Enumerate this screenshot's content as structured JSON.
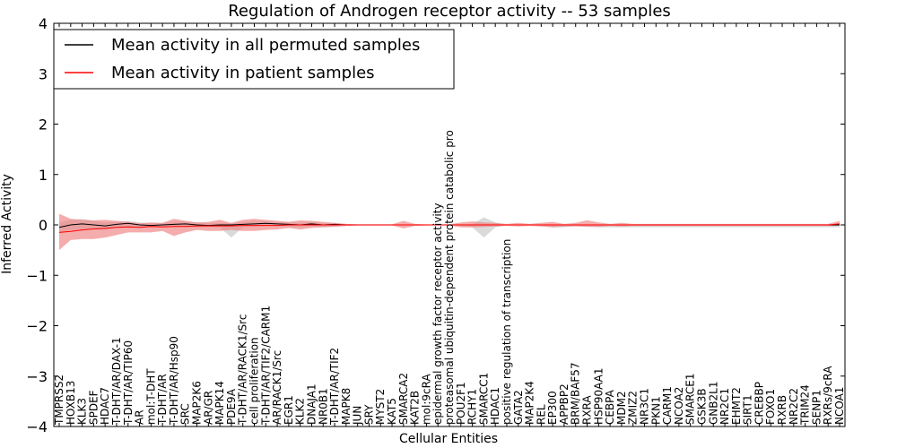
{
  "chart_data": {
    "type": "line",
    "title": "Regulation of Androgen receptor activity -- 53 samples",
    "xlabel": "Cellular Entities",
    "ylabel": "Inferred Activity",
    "ylim": [
      -4,
      4
    ],
    "yticks": [
      "−4",
      "−3",
      "−2",
      "−1",
      "0",
      "1",
      "2",
      "3",
      "4"
    ],
    "yticks_values": [
      -4,
      -3,
      -2,
      -1,
      0,
      1,
      2,
      3,
      4
    ],
    "grid": false,
    "legend_position": "top-left",
    "categories": [
      "TMPRSS2",
      "HOXB13",
      "KLK3",
      "SPDEF",
      "HDAC7",
      "T-DHT/AR/DAX-1",
      "T-DHT/AR/TIP60",
      "AR",
      "mol:T-DHT",
      "T-DHT/AR",
      "T-DHT/AR/Hsp90",
      "SRC",
      "MAP2K6",
      "AR/GR",
      "MAPK14",
      "PDE9A",
      "T-DHT/AR/RACK1/Src",
      "cell proliferation",
      "T-DHT/AR/TIF2/CARM1",
      "AR/RACK1/Src",
      "EGR1",
      "KLK2",
      "DNAJA1",
      "NR0B1",
      "T-DHT/AR/TIF2",
      "MAPK8",
      "JUN",
      "SRY",
      "MYST2",
      "KAT5",
      "SMARCA2",
      "KAT2B",
      "mol:9cRA",
      "epidermal growth factor receptor activity",
      "proteasomal ubiquitin-dependent protein catabolic pro",
      "POU2F1",
      "RCHY1",
      "SMARCC1",
      "HDAC1",
      "positive regulation of transcription",
      "GATA2",
      "MAP2K4",
      "REL",
      "EP300",
      "APPBP2",
      "BRM/BAF57",
      "RXRA",
      "HSP90AA1",
      "CEBPA",
      "MDM2",
      "ZMIZ2",
      "NR3C1",
      "PKN1",
      "CARM1",
      "NCOA2",
      "SMARCE1",
      "GSK3B",
      "GNB2L1",
      "NR2C1",
      "EHMT2",
      "SIRT1",
      "CREBBP",
      "FOXO1",
      "RXRB",
      "NR2C2",
      "TRIM24",
      "SENP1",
      "RXRs/9cRA",
      "NCOA1"
    ],
    "series": [
      {
        "name": "Mean activity in all permuted samples",
        "color": "#000000",
        "values": [
          -0.05,
          0.0,
          0.02,
          0.0,
          -0.02,
          0.01,
          0.03,
          0.0,
          -0.01,
          0.0,
          0.01,
          0.02,
          0.0,
          -0.01,
          0.0,
          0.0,
          0.01,
          0.02,
          0.03,
          0.02,
          0.01,
          0.0,
          0.02,
          0.0,
          0.01,
          0.0,
          0.0,
          0.0,
          0.0,
          0.0,
          0.0,
          0.0,
          0.0,
          0.0,
          0.0,
          0.0,
          0.0,
          0.0,
          0.0,
          0.0,
          0.0,
          0.0,
          0.0,
          0.0,
          0.0,
          0.0,
          0.0,
          0.0,
          0.0,
          0.0,
          0.0,
          0.0,
          0.0,
          0.0,
          0.0,
          0.0,
          0.0,
          0.0,
          0.0,
          0.0,
          0.0,
          0.0,
          0.0,
          0.0,
          0.0,
          0.0,
          0.0,
          0.0,
          0.0
        ],
        "band_upper": [
          0.05,
          0.1,
          0.12,
          0.08,
          0.05,
          0.06,
          0.08,
          0.05,
          0.03,
          0.04,
          0.06,
          0.07,
          0.05,
          0.03,
          0.04,
          0.03,
          0.06,
          0.08,
          0.07,
          0.06,
          0.05,
          0.04,
          0.06,
          0.03,
          0.04,
          0.02,
          0.01,
          0.01,
          0.01,
          0.01,
          0.0,
          0.0,
          0.0,
          0.0,
          0.0,
          0.0,
          0.02,
          0.15,
          0.05,
          0.0,
          0.0,
          0.0,
          0.0,
          0.0,
          0.0,
          0.0,
          0.0,
          0.0,
          0.0,
          0.0,
          0.0,
          0.0,
          0.0,
          0.0,
          0.0,
          0.0,
          0.0,
          0.0,
          0.0,
          0.0,
          0.0,
          0.0,
          0.0,
          0.0,
          0.0,
          0.0,
          0.0,
          0.0,
          0.0
        ],
        "band_lower": [
          -0.15,
          -0.1,
          -0.08,
          -0.08,
          -0.1,
          -0.05,
          -0.03,
          -0.06,
          -0.05,
          -0.05,
          -0.04,
          -0.04,
          -0.06,
          -0.05,
          -0.05,
          -0.25,
          -0.05,
          -0.04,
          -0.02,
          -0.03,
          -0.04,
          -0.05,
          -0.03,
          -0.04,
          -0.03,
          -0.02,
          -0.01,
          -0.01,
          -0.01,
          -0.01,
          0.0,
          0.0,
          0.0,
          0.0,
          0.0,
          -0.02,
          -0.05,
          -0.25,
          -0.05,
          0.0,
          0.0,
          0.0,
          -0.02,
          -0.05,
          -0.05,
          -0.02,
          -0.03,
          -0.05,
          -0.05,
          -0.05,
          -0.05,
          -0.05,
          -0.05,
          -0.05,
          -0.05,
          -0.05,
          -0.05,
          -0.05,
          -0.05,
          -0.05,
          -0.05,
          -0.05,
          -0.05,
          -0.05,
          -0.05,
          -0.05,
          -0.05,
          -0.05,
          -0.05
        ]
      },
      {
        "name": "Mean activity in patient samples",
        "color": "#ff0000",
        "values": [
          -0.15,
          -0.13,
          -0.1,
          -0.08,
          -0.07,
          -0.05,
          -0.04,
          -0.05,
          -0.03,
          -0.04,
          -0.03,
          -0.03,
          -0.02,
          -0.02,
          -0.02,
          -0.02,
          -0.01,
          -0.01,
          -0.01,
          -0.01,
          0.0,
          0.0,
          0.0,
          0.0,
          0.0,
          0.0,
          0.0,
          0.0,
          0.0,
          0.0,
          0.0,
          0.0,
          0.0,
          0.0,
          0.0,
          0.0,
          0.0,
          0.0,
          0.0,
          0.0,
          0.0,
          0.0,
          0.0,
          0.0,
          0.0,
          0.0,
          0.0,
          0.0,
          0.0,
          0.0,
          0.0,
          0.0,
          0.0,
          0.0,
          0.0,
          0.0,
          0.0,
          0.0,
          0.0,
          0.0,
          0.0,
          0.0,
          0.0,
          0.0,
          0.0,
          0.0,
          0.0,
          0.0,
          0.02
        ],
        "band_upper": [
          0.22,
          0.12,
          0.1,
          0.09,
          0.1,
          0.08,
          0.06,
          0.03,
          0.05,
          0.04,
          0.12,
          0.08,
          0.05,
          0.06,
          0.1,
          0.04,
          0.1,
          0.12,
          0.1,
          0.08,
          0.06,
          0.09,
          0.08,
          0.06,
          0.04,
          0.02,
          0.01,
          0.01,
          0.01,
          0.01,
          0.08,
          0.02,
          0.01,
          0.01,
          0.01,
          0.05,
          0.07,
          0.05,
          0.04,
          0.02,
          0.04,
          0.02,
          0.04,
          0.06,
          0.02,
          0.04,
          0.09,
          0.05,
          0.02,
          0.04,
          0.02,
          0.02,
          0.02,
          0.02,
          0.02,
          0.02,
          0.02,
          0.02,
          0.02,
          0.02,
          0.02,
          0.02,
          0.02,
          0.02,
          0.02,
          0.02,
          0.02,
          0.02,
          0.08
        ],
        "band_lower": [
          -0.5,
          -0.3,
          -0.28,
          -0.28,
          -0.25,
          -0.2,
          -0.15,
          -0.15,
          -0.15,
          -0.12,
          -0.22,
          -0.15,
          -0.1,
          -0.12,
          -0.12,
          -0.1,
          -0.12,
          -0.12,
          -0.1,
          -0.09,
          -0.06,
          -0.09,
          -0.06,
          -0.05,
          -0.04,
          -0.02,
          -0.01,
          -0.01,
          -0.01,
          -0.01,
          -0.07,
          -0.02,
          -0.01,
          -0.01,
          -0.01,
          -0.05,
          -0.05,
          -0.04,
          -0.03,
          -0.02,
          -0.03,
          -0.02,
          -0.03,
          -0.05,
          -0.03,
          -0.03,
          -0.04,
          -0.04,
          -0.02,
          -0.03,
          -0.02,
          -0.02,
          -0.02,
          -0.02,
          -0.02,
          -0.02,
          -0.02,
          -0.02,
          -0.02,
          -0.02,
          -0.02,
          -0.02,
          -0.02,
          -0.02,
          -0.02,
          -0.02,
          -0.02,
          -0.02,
          -0.02
        ]
      }
    ]
  },
  "colors": {
    "patient_line": "#ff0000",
    "patient_band": "#f08080",
    "permuted_line": "#000000",
    "permuted_band": "#bbbbbb",
    "axes": "#000000"
  }
}
